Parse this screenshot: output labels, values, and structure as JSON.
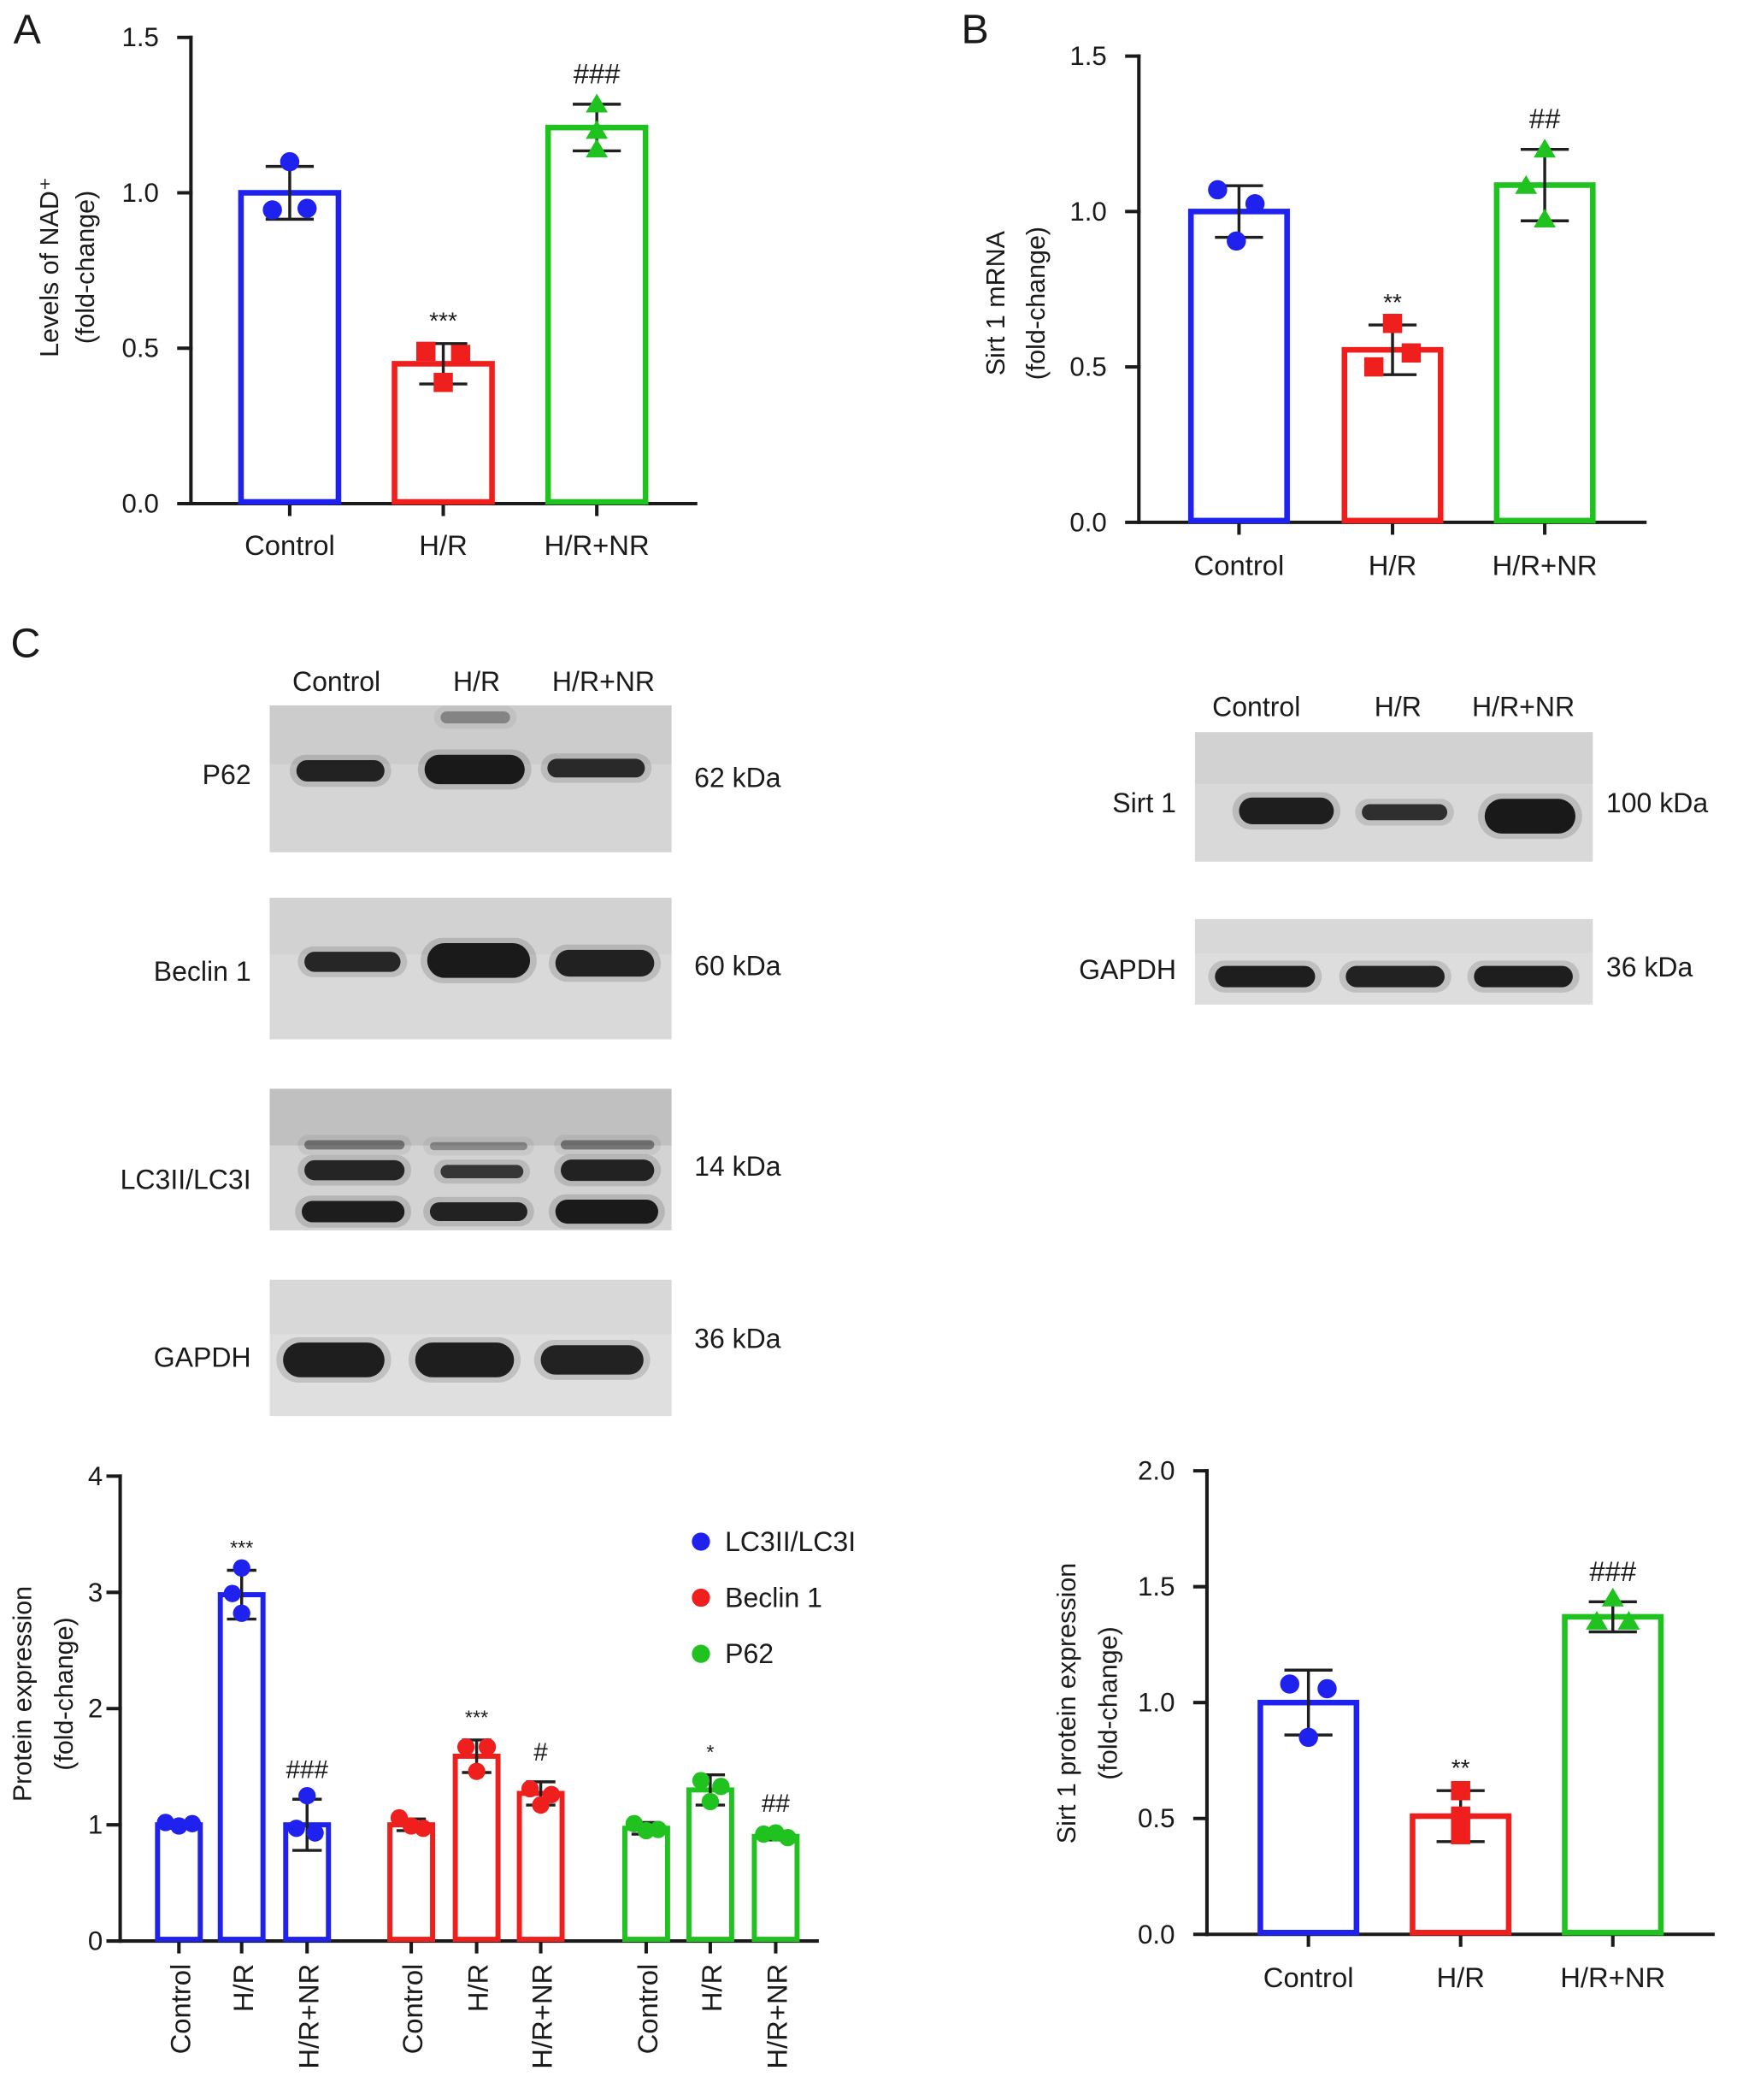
{
  "panel_c": "C",
  "chart_data": [
    {
      "panel": "A",
      "type": "bar",
      "categories": [
        "Control",
        "H/R",
        "H/R+NR"
      ],
      "values": [
        1.0,
        0.45,
        1.21
      ],
      "sd": [
        0.085,
        0.065,
        0.075
      ],
      "points": [
        [
          1.1,
          0.945,
          0.95
        ],
        [
          0.49,
          0.48,
          0.39
        ],
        [
          1.285,
          1.2,
          1.14
        ]
      ],
      "annotations": [
        "",
        "***",
        "###"
      ],
      "colors": [
        "#1f22ee",
        "#ee1f1c",
        "#1fc21f"
      ],
      "markers": [
        "circle",
        "square",
        "triangle"
      ],
      "ylabel_lines": [
        "Levels of NAD⁺",
        "(fold-change)"
      ],
      "ylim": [
        0,
        1.5
      ],
      "yticks": [
        0,
        0.5,
        1.0,
        1.5
      ],
      "ytick_labels": [
        "0.0",
        "0.5",
        "1.0",
        "1.5"
      ]
    },
    {
      "panel": "B",
      "type": "bar",
      "categories": [
        "Control",
        "H/R",
        "H/R+NR"
      ],
      "values": [
        1.0,
        0.555,
        1.085
      ],
      "sd": [
        0.083,
        0.08,
        0.115
      ],
      "points": [
        [
          1.07,
          1.025,
          0.905
        ],
        [
          0.64,
          0.545,
          0.5
        ],
        [
          1.2,
          1.083,
          0.975
        ]
      ],
      "annotations": [
        "",
        "**",
        "##"
      ],
      "colors": [
        "#1f22ee",
        "#ee1f1c",
        "#1fc21f"
      ],
      "markers": [
        "circle",
        "square",
        "triangle"
      ],
      "ylabel_lines": [
        "Sirt 1 mRNA",
        "(fold-change)"
      ],
      "ylim": [
        0,
        1.5
      ],
      "yticks": [
        0,
        0.5,
        1.0,
        1.5
      ],
      "ytick_labels": [
        "0.0",
        "0.5",
        "1.0",
        "1.5"
      ]
    },
    {
      "type": "bar",
      "categories": [
        "Control",
        "H/R",
        "H/R+NR"
      ],
      "series": [
        {
          "name": "LC3II/LC3I",
          "color": "#1f22ee",
          "values": [
            1.0,
            2.98,
            1.0
          ],
          "sd": [
            0.03,
            0.21,
            0.22
          ],
          "points": [
            [
              1.02,
              0.99,
              1.01
            ],
            [
              3.21,
              2.99,
              2.82
            ],
            [
              1.25,
              0.97,
              0.93
            ]
          ],
          "annotations": [
            "",
            "***",
            "###"
          ]
        },
        {
          "name": "Beclin 1",
          "color": "#ee1f1c",
          "values": [
            1.0,
            1.59,
            1.27
          ],
          "sd": [
            0.05,
            0.14,
            0.1
          ],
          "points": [
            [
              1.06,
              0.99,
              0.97
            ],
            [
              1.67,
              1.67,
              1.46
            ],
            [
              1.31,
              1.26,
              1.17
            ]
          ],
          "annotations": [
            "",
            "***",
            "#"
          ]
        },
        {
          "name": "P62",
          "color": "#1fc21f",
          "values": [
            0.97,
            1.3,
            0.9
          ],
          "sd": [
            0.05,
            0.13,
            0.03
          ],
          "points": [
            [
              1.01,
              0.95,
              0.96
            ],
            [
              1.38,
              1.33,
              1.2
            ],
            [
              0.92,
              0.93,
              0.89
            ]
          ],
          "annotations": [
            "",
            "*",
            "##"
          ]
        }
      ],
      "marker": "circle",
      "legend_position": "top-right",
      "ylabel_lines": [
        "Protein expression",
        "(fold-change)"
      ],
      "ylim": [
        0,
        4
      ],
      "yticks": [
        0,
        1,
        2,
        3,
        4
      ],
      "ytick_labels": [
        "0",
        "1",
        "2",
        "3",
        "4"
      ]
    },
    {
      "type": "bar",
      "categories": [
        "Control",
        "H/R",
        "H/R+NR"
      ],
      "values": [
        1.0,
        0.51,
        1.37
      ],
      "sd": [
        0.14,
        0.11,
        0.065
      ],
      "points": [
        [
          1.08,
          1.06,
          0.85
        ],
        [
          0.62,
          0.51,
          0.43
        ],
        [
          1.45,
          1.35,
          1.35
        ]
      ],
      "annotations": [
        "",
        "**",
        "###"
      ],
      "colors": [
        "#1f22ee",
        "#ee1f1c",
        "#1fc21f"
      ],
      "markers": [
        "circle",
        "square",
        "triangle"
      ],
      "ylabel_lines": [
        "Sirt 1 protein expression",
        "(fold-change)"
      ],
      "ylim": [
        0,
        2.0
      ],
      "yticks": [
        0,
        0.5,
        1.0,
        1.5,
        2.0
      ],
      "ytick_labels": [
        "0.0",
        "0.5",
        "1.0",
        "1.5",
        "2.0"
      ]
    }
  ],
  "blots": {
    "left": {
      "lanes": [
        "Control",
        "H/R",
        "H/R+NR"
      ],
      "rows": [
        {
          "label": "P62",
          "size": "62 kDa"
        },
        {
          "label": "Beclin 1",
          "size": "60 kDa"
        },
        {
          "label": "LC3II/LC3I",
          "size": "14 kDa"
        },
        {
          "label": "GAPDH",
          "size": "36 kDa"
        }
      ]
    },
    "right": {
      "lanes": [
        "Control",
        "H/R",
        "H/R+NR"
      ],
      "rows": [
        {
          "label": "Sirt 1",
          "size": "100 kDa"
        },
        {
          "label": "GAPDH",
          "size": "36 kDa"
        }
      ]
    }
  }
}
